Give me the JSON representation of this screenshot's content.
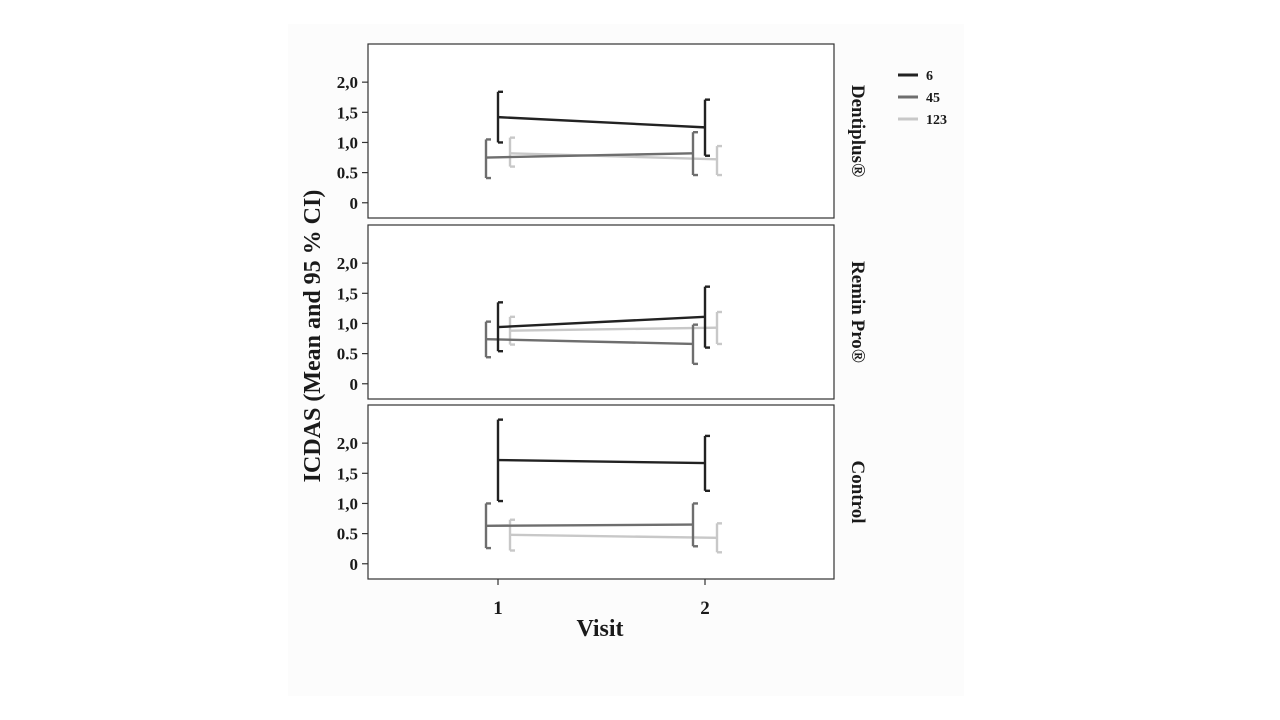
{
  "chart_data": {
    "type": "line",
    "ylabel": "ICDAS (Mean and 95 % CI)",
    "xlabel": "Visit",
    "categories": [
      "1",
      "2"
    ],
    "yticks": [
      "0",
      "0.5",
      "1,0",
      "1,5",
      "2,0"
    ],
    "ytick_values": [
      0,
      0.5,
      1.0,
      1.5,
      2.0
    ],
    "ylim": [
      -0.12,
      2.5
    ],
    "error_bars": "95% CI",
    "legend": {
      "position": "top-right",
      "entries": [
        {
          "name": "6",
          "color": "#222222"
        },
        {
          "name": "45",
          "color": "#6e6e6e"
        },
        {
          "name": "123",
          "color": "#c8c8c8"
        }
      ]
    },
    "panels": [
      {
        "label": "Dentiplus®",
        "series": [
          {
            "name": "6",
            "values": [
              1.42,
              1.25
            ],
            "ci_low": [
              1.0,
              0.78
            ],
            "ci_high": [
              1.84,
              1.71
            ]
          },
          {
            "name": "45",
            "values": [
              0.75,
              0.82
            ],
            "ci_low": [
              0.41,
              0.46
            ],
            "ci_high": [
              1.05,
              1.17
            ]
          },
          {
            "name": "123",
            "values": [
              0.82,
              0.72
            ],
            "ci_low": [
              0.6,
              0.46
            ],
            "ci_high": [
              1.08,
              0.94
            ]
          }
        ]
      },
      {
        "label": "Remin Pro®",
        "series": [
          {
            "name": "6",
            "values": [
              0.94,
              1.11
            ],
            "ci_low": [
              0.54,
              0.6
            ],
            "ci_high": [
              1.35,
              1.61
            ]
          },
          {
            "name": "45",
            "values": [
              0.74,
              0.66
            ],
            "ci_low": [
              0.44,
              0.33
            ],
            "ci_high": [
              1.03,
              0.98
            ]
          },
          {
            "name": "123",
            "values": [
              0.88,
              0.93
            ],
            "ci_low": [
              0.65,
              0.66
            ],
            "ci_high": [
              1.11,
              1.19
            ]
          }
        ]
      },
      {
        "label": "Control",
        "series": [
          {
            "name": "6",
            "values": [
              1.72,
              1.67
            ],
            "ci_low": [
              1.04,
              1.21
            ],
            "ci_high": [
              2.39,
              2.12
            ]
          },
          {
            "name": "45",
            "values": [
              0.63,
              0.65
            ],
            "ci_low": [
              0.26,
              0.29
            ],
            "ci_high": [
              1.0,
              1.0
            ]
          },
          {
            "name": "123",
            "values": [
              0.48,
              0.43
            ],
            "ci_low": [
              0.22,
              0.19
            ],
            "ci_high": [
              0.73,
              0.67
            ]
          }
        ]
      }
    ]
  }
}
